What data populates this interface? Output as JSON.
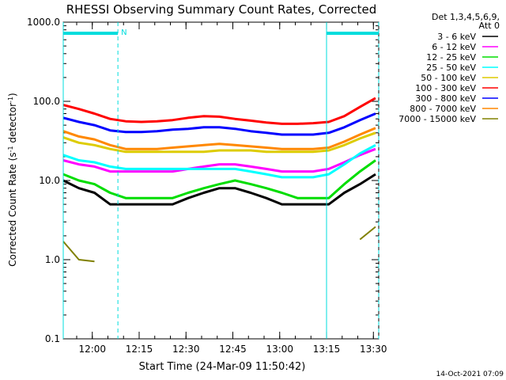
{
  "chart_data": {
    "type": "line",
    "title": "RHESSI Observing Summary Count Rates, Corrected",
    "xlabel": "Start Time (24-Mar-09 11:50:42)",
    "ylabel": "Corrected Count Rate (s⁻¹ detector⁻¹)",
    "yscale": "log",
    "ylim": [
      0.1,
      1000
    ],
    "xlim_minutes": [
      0,
      101
    ],
    "y_tick_labels": [
      "0.1",
      "1.0",
      "10.0",
      "100.0",
      "1000.0"
    ],
    "y_tick_values": [
      0.1,
      1,
      10,
      100,
      1000
    ],
    "x_tick_labels": [
      "12:00",
      "12:15",
      "12:30",
      "12:45",
      "13:00",
      "13:15",
      "13:30"
    ],
    "x_tick_minutes": [
      9.3,
      24.3,
      39.3,
      54.3,
      69.3,
      84.3,
      99.3
    ],
    "legend_header": [
      "Det 1,3,4,5,6,9,",
      "Att 0"
    ],
    "legend_position": "outside-right",
    "footer_date": "14-Oct-2021 07:09",
    "night_marker_label": "N",
    "x_sample_minutes": [
      0,
      5,
      10,
      15,
      20,
      25,
      30,
      35,
      40,
      45,
      50,
      55,
      60,
      65,
      70,
      75,
      80,
      85,
      90,
      95,
      100
    ],
    "series": [
      {
        "name": "3 - 6 keV",
        "color": "#000000",
        "values": [
          10,
          8,
          7,
          5,
          5,
          5,
          5,
          5,
          6,
          7,
          8,
          8,
          7,
          6,
          5,
          5,
          5,
          5,
          7,
          9,
          12
        ]
      },
      {
        "name": "6 - 12 keV",
        "color": "#ff00ff",
        "values": [
          18,
          16,
          15,
          13,
          13,
          13,
          13,
          13,
          14,
          15,
          16,
          16,
          15,
          14,
          13,
          13,
          13,
          14,
          17,
          21,
          25
        ]
      },
      {
        "name": "12 - 25 keV",
        "color": "#00dd00",
        "values": [
          12,
          10,
          9,
          7,
          6,
          6,
          6,
          6,
          7,
          8,
          9,
          10,
          9,
          8,
          7,
          6,
          6,
          6,
          9,
          13,
          18
        ]
      },
      {
        "name": "25 - 50 keV",
        "color": "#00ffff",
        "values": [
          21,
          18,
          17,
          15,
          14,
          14,
          14,
          14,
          14,
          14,
          14,
          14,
          13,
          12,
          11,
          11,
          11,
          12,
          16,
          22,
          28
        ]
      },
      {
        "name": "50 - 100 keV",
        "color": "#ddcc00",
        "values": [
          35,
          30,
          28,
          25,
          23,
          23,
          23,
          23,
          23,
          23,
          24,
          24,
          24,
          23,
          23,
          23,
          23,
          24,
          28,
          34,
          40
        ]
      },
      {
        "name": "100 - 300 keV",
        "color": "#ff0000",
        "values": [
          90,
          80,
          70,
          60,
          56,
          55,
          56,
          58,
          62,
          65,
          64,
          60,
          57,
          54,
          52,
          52,
          53,
          55,
          65,
          85,
          110
        ]
      },
      {
        "name": "300 - 800 keV",
        "color": "#0000ff",
        "values": [
          62,
          55,
          50,
          43,
          41,
          41,
          42,
          44,
          45,
          47,
          47,
          45,
          42,
          40,
          38,
          38,
          38,
          40,
          47,
          58,
          70
        ]
      },
      {
        "name": "800 - 7000 keV",
        "color": "#ff8800",
        "values": [
          42,
          36,
          33,
          28,
          25,
          25,
          25,
          26,
          27,
          28,
          29,
          28,
          27,
          26,
          25,
          25,
          25,
          26,
          31,
          38,
          46
        ]
      },
      {
        "name": "7000 - 15000 keV",
        "color": "#808000",
        "values": [
          1.7,
          1.0,
          0.95,
          null,
          null,
          null,
          null,
          null,
          null,
          null,
          null,
          null,
          null,
          null,
          null,
          null,
          null,
          null,
          null,
          1.8,
          2.6
        ]
      }
    ],
    "night_segments": [
      {
        "start": 0,
        "end": 17.5
      },
      {
        "start": 84.3,
        "end": 101
      }
    ],
    "attenuator_mark_minutes": [
      0,
      17.5,
      84.3,
      101
    ]
  }
}
